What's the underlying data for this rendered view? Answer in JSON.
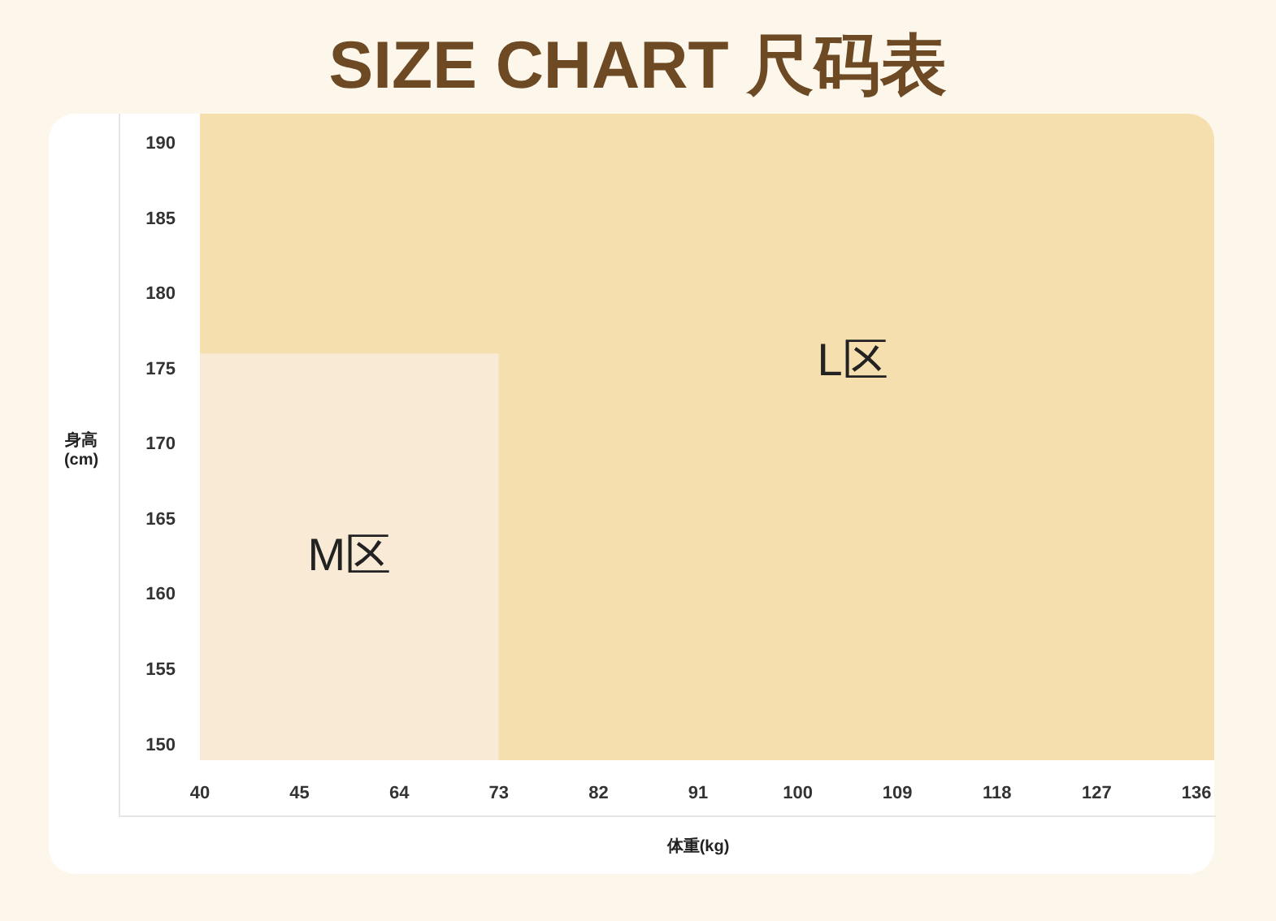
{
  "chart_data": {
    "type": "area",
    "title": "SIZE CHART 尺码表",
    "xlabel": "体重(kg)",
    "ylabel": "身高(cm)",
    "categories": [
      "40",
      "45",
      "64",
      "73",
      "82",
      "91",
      "100",
      "109",
      "118",
      "127",
      "136"
    ],
    "series": [
      {
        "name": "M区",
        "color": "#f9ead5",
        "values": [
          176,
          176,
          176,
          176,
          null,
          null,
          null,
          null,
          null,
          null,
          null
        ]
      }
    ],
    "annotations": [
      "L区"
    ],
    "ylim": [
      149,
      192
    ],
    "yticks": [
      150,
      155,
      160,
      165,
      170,
      175,
      180,
      185,
      190
    ]
  }
}
